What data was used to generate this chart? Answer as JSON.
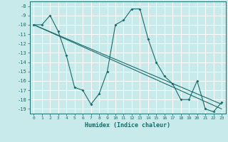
{
  "xlabel": "Humidex (Indice chaleur)",
  "ylabel": "",
  "bg_color": "#c8eaea",
  "grid_color": "#ffffff",
  "line_color": "#1a6b6b",
  "xlim": [
    -0.5,
    23.5
  ],
  "ylim": [
    -19.5,
    -7.5
  ],
  "yticks": [
    -8,
    -9,
    -10,
    -11,
    -12,
    -13,
    -14,
    -15,
    -16,
    -17,
    -18,
    -19
  ],
  "xticks": [
    0,
    1,
    2,
    3,
    4,
    5,
    6,
    7,
    8,
    9,
    10,
    11,
    12,
    13,
    14,
    15,
    16,
    17,
    18,
    19,
    20,
    21,
    22,
    23
  ],
  "series": [
    [
      0,
      -10
    ],
    [
      1,
      -10
    ],
    [
      2,
      -9
    ],
    [
      3,
      -10.7
    ],
    [
      4,
      -13.3
    ],
    [
      5,
      -16.7
    ],
    [
      6,
      -17
    ],
    [
      7,
      -18.5
    ],
    [
      8,
      -17.4
    ],
    [
      9,
      -15
    ],
    [
      10,
      -10
    ],
    [
      11,
      -9.5
    ],
    [
      12,
      -8.3
    ],
    [
      13,
      -8.3
    ],
    [
      14,
      -11.5
    ],
    [
      15,
      -14
    ],
    [
      16,
      -15.5
    ],
    [
      17,
      -16.3
    ],
    [
      18,
      -18
    ],
    [
      19,
      -18
    ],
    [
      20,
      -16
    ],
    [
      21,
      -19
    ],
    [
      22,
      -19.3
    ],
    [
      23,
      -18.3
    ]
  ],
  "series2": [
    [
      0,
      -10
    ],
    [
      23,
      -19
    ]
  ],
  "series3": [
    [
      0,
      -10
    ],
    [
      23,
      -18.5
    ]
  ]
}
